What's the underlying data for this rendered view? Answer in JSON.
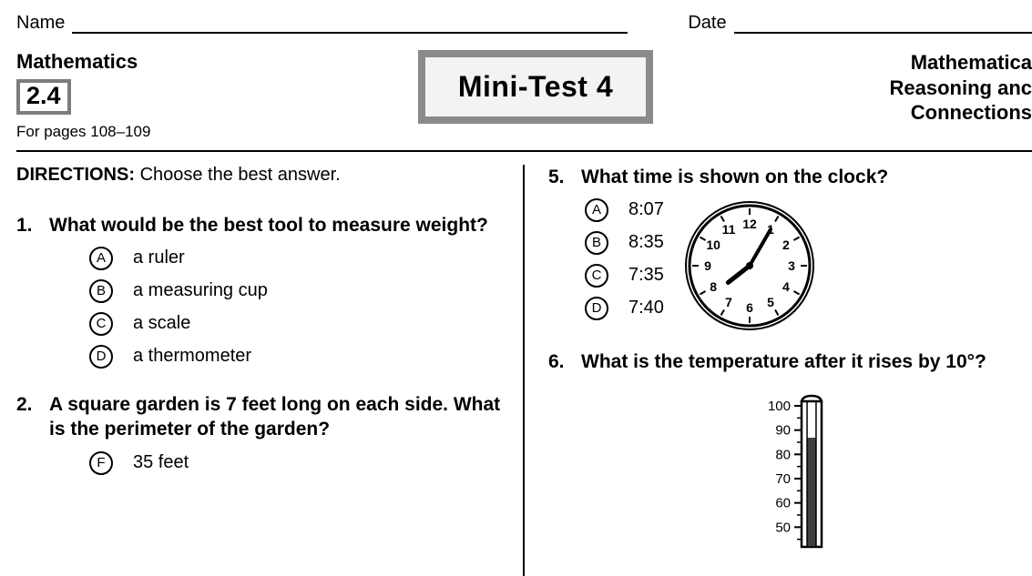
{
  "header": {
    "name_label": "Name",
    "date_label": "Date"
  },
  "meta": {
    "subject": "Mathematics",
    "section_number": "2.4",
    "pages_note": "For pages 108–109",
    "title": "Mini-Test 4",
    "topic_line1": "Mathematica",
    "topic_line2": "Reasoning anc",
    "topic_line3": "Connections"
  },
  "directions_label": "DIRECTIONS:",
  "directions_text": "Choose the best answer.",
  "questions": {
    "q1": {
      "num": "1.",
      "text": "What would be the best tool to measure weight?",
      "choices": [
        {
          "letter": "A",
          "text": "a ruler"
        },
        {
          "letter": "B",
          "text": "a measuring cup"
        },
        {
          "letter": "C",
          "text": "a scale"
        },
        {
          "letter": "D",
          "text": "a thermometer"
        }
      ]
    },
    "q2": {
      "num": "2.",
      "text": "A square garden is 7 feet long on each side. What is the perimeter of the garden?",
      "choices": [
        {
          "letter": "F",
          "text": "35 feet"
        }
      ]
    },
    "q5": {
      "num": "5.",
      "text": "What time is shown on the clock?",
      "choices": [
        {
          "letter": "A",
          "text": "8:07"
        },
        {
          "letter": "B",
          "text": "8:35"
        },
        {
          "letter": "C",
          "text": "7:35"
        },
        {
          "letter": "D",
          "text": "7:40"
        }
      ]
    },
    "q6": {
      "num": "6.",
      "text": "What is the temperature after it rises by 10°?"
    }
  },
  "clock": {
    "numbers": [
      "12",
      "1",
      "2",
      "3",
      "4",
      "5",
      "6",
      "7",
      "8",
      "9",
      "10",
      "11"
    ],
    "hour_angle_deg": 232,
    "minute_angle_deg": 30,
    "face_color": "#ffffff",
    "border_color": "#000000",
    "border_width": 3,
    "radius": 66
  },
  "thermometer": {
    "labels": [
      "100",
      "90",
      "80",
      "70",
      "60",
      "50"
    ],
    "fill_level": 75,
    "max_value": 100,
    "tube_color": "#ffffff",
    "border_color": "#000000",
    "fill_color": "#404040",
    "width": 22,
    "height": 160
  },
  "colors": {
    "text": "#000000",
    "box_border": "#8a8a8a",
    "box_bg": "#f3f3f3",
    "page_bg": "#ffffff"
  }
}
